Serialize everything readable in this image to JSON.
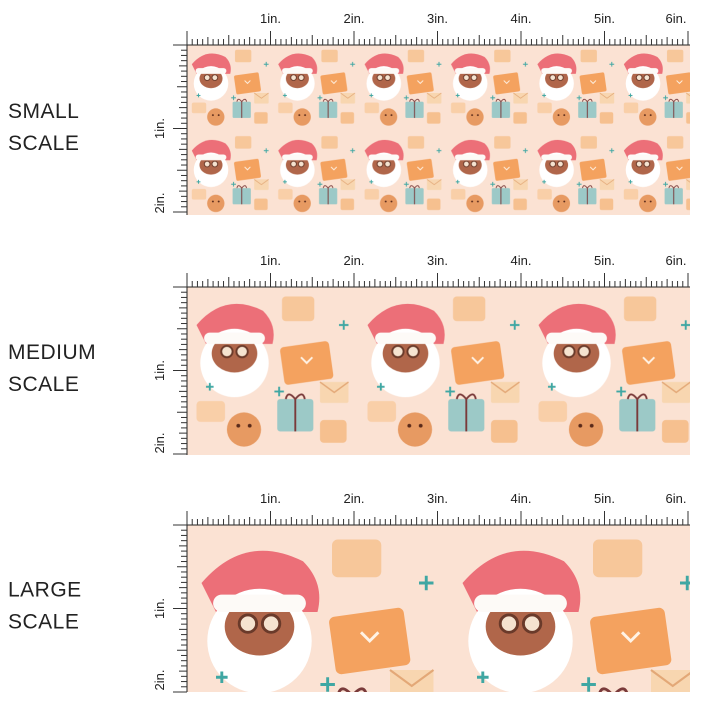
{
  "panels": [
    {
      "label_lines": [
        "SMALL",
        "SCALE"
      ],
      "top_ticks": [
        "1in.",
        "2in.",
        "3in.",
        "4in.",
        "5in.",
        "6in."
      ],
      "side_ticks": [
        "1in.",
        "2in."
      ]
    },
    {
      "label_lines": [
        "MEDIUM",
        "SCALE"
      ],
      "top_ticks": [
        "1in.",
        "2in.",
        "3in.",
        "4in.",
        "5in.",
        "6in."
      ],
      "side_ticks": [
        "1in.",
        "2in."
      ]
    },
    {
      "label_lines": [
        "LARGE",
        "SCALE"
      ],
      "top_ticks": [
        "1in.",
        "2in.",
        "3in.",
        "4in.",
        "5in.",
        "6in."
      ],
      "side_ticks": [
        "1in.",
        "2in."
      ]
    }
  ]
}
